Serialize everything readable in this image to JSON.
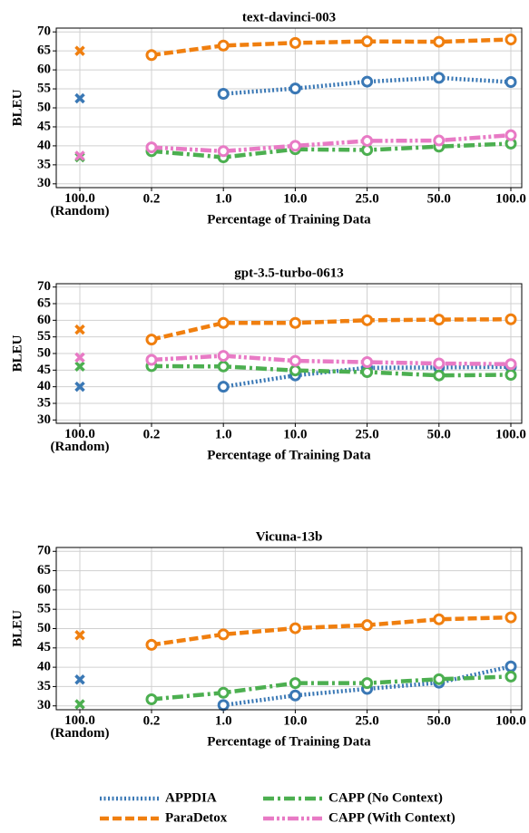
{
  "chart_data": [
    {
      "type": "line",
      "title": "text-davinci-003",
      "xlabel": "Percentage of Training Data",
      "ylabel": "BLEU",
      "categories": [
        "100.0\n(Random)",
        "0.2",
        "1.0",
        "10.0",
        "25.0",
        "50.0",
        "100.0"
      ],
      "ylim": [
        29,
        71
      ],
      "yticks": [
        30,
        35,
        40,
        45,
        50,
        55,
        60,
        65,
        70
      ],
      "grid": true,
      "series": [
        {
          "name": "APPDIA",
          "color": "#3a78b5",
          "linestyle": "dotted",
          "values": [
            52.5,
            null,
            53.7,
            55.1,
            56.9,
            57.9,
            56.8
          ]
        },
        {
          "name": "ParaDetox",
          "color": "#f07f0f",
          "linestyle": "dashed",
          "values": [
            65,
            63.9,
            66.4,
            67.1,
            67.5,
            67.4,
            68.0
          ]
        },
        {
          "name": "CAPP (No Context)",
          "color": "#4caf50",
          "linestyle": "dashdot",
          "values": [
            37,
            38.6,
            37.0,
            39.1,
            38.9,
            39.8,
            40.6
          ]
        },
        {
          "name": "CAPP (With Context)",
          "color": "#e87ac5",
          "linestyle": "dashdotdot",
          "values": [
            37.4,
            39.6,
            38.6,
            40.0,
            41.3,
            41.4,
            42.8
          ]
        }
      ]
    },
    {
      "type": "line",
      "title": "gpt-3.5-turbo-0613",
      "xlabel": "Percentage of Training Data",
      "ylabel": "BLEU",
      "categories": [
        "100.0\n(Random)",
        "0.2",
        "1.0",
        "10.0",
        "25.0",
        "50.0",
        "100.0"
      ],
      "ylim": [
        29,
        71
      ],
      "yticks": [
        30,
        35,
        40,
        45,
        50,
        55,
        60,
        65,
        70
      ],
      "grid": true,
      "series": [
        {
          "name": "APPDIA",
          "color": "#3a78b5",
          "linestyle": "dotted",
          "values": [
            40.0,
            null,
            40.0,
            43.4,
            45.7,
            45.8,
            46.0
          ]
        },
        {
          "name": "ParaDetox",
          "color": "#f07f0f",
          "linestyle": "dashed",
          "values": [
            57.2,
            54.2,
            59.2,
            59.2,
            60.0,
            60.2,
            60.3
          ]
        },
        {
          "name": "CAPP (No Context)",
          "color": "#4caf50",
          "linestyle": "dashdot",
          "values": [
            46.1,
            46.2,
            46.1,
            44.9,
            44.4,
            43.4,
            43.6
          ]
        },
        {
          "name": "CAPP (With Context)",
          "color": "#e87ac5",
          "linestyle": "dashdotdot",
          "values": [
            48.8,
            48.1,
            49.3,
            47.8,
            47.4,
            47.0,
            46.8
          ]
        }
      ]
    },
    {
      "type": "line",
      "title": "Vicuna-13b",
      "xlabel": "Percentage of Training Data",
      "ylabel": "BLEU",
      "categories": [
        "100.0\n(Random)",
        "0.2",
        "1.0",
        "10.0",
        "25.0",
        "50.0",
        "100.0"
      ],
      "ylim": [
        29,
        71
      ],
      "yticks": [
        30,
        35,
        40,
        45,
        50,
        55,
        60,
        65,
        70
      ],
      "grid": true,
      "series": [
        {
          "name": "APPDIA",
          "color": "#3a78b5",
          "linestyle": "dotted",
          "values": [
            36.8,
            null,
            30.2,
            32.7,
            34.4,
            36.0,
            40.2
          ]
        },
        {
          "name": "ParaDetox",
          "color": "#f07f0f",
          "linestyle": "dashed",
          "values": [
            48.3,
            45.8,
            48.5,
            50.1,
            50.9,
            52.4,
            52.9
          ]
        },
        {
          "name": "CAPP (No Context)",
          "color": "#4caf50",
          "linestyle": "dashdot",
          "values": [
            30.4,
            31.7,
            33.4,
            35.9,
            35.9,
            36.9,
            37.6
          ]
        }
      ]
    }
  ]
}
